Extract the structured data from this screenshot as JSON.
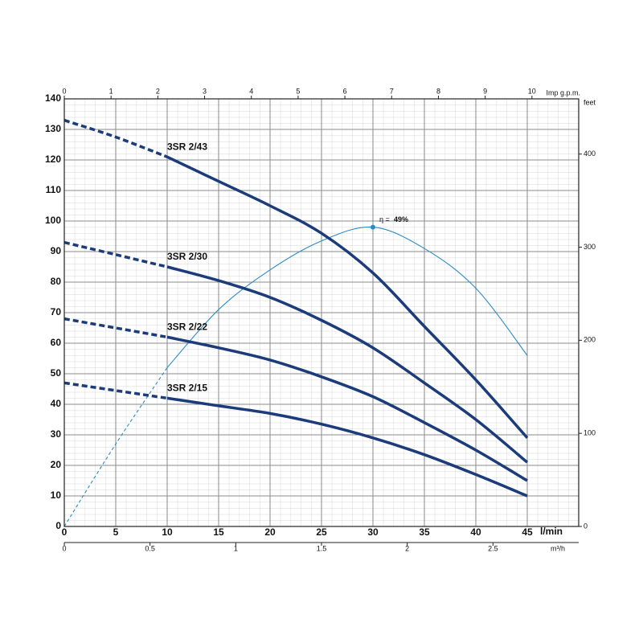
{
  "chart_data": {
    "type": "line",
    "x": [
      0,
      5,
      10,
      15,
      20,
      25,
      30,
      35,
      40,
      45
    ],
    "x_label": "l/min",
    "xlim": [
      0,
      50
    ],
    "xticks": [
      0,
      5,
      10,
      15,
      20,
      25,
      30,
      35,
      40,
      45
    ],
    "ylim": [
      0,
      140
    ],
    "yticks": [
      0,
      10,
      20,
      30,
      40,
      50,
      60,
      70,
      80,
      90,
      100,
      110,
      120,
      130,
      140
    ],
    "grid": true,
    "dashed_until": 10,
    "bottom_axis_2": {
      "label": "m³/h",
      "lim": [
        0,
        3.0
      ],
      "ticks": [
        0,
        0.5,
        1,
        1.5,
        2,
        2.5
      ]
    },
    "top_axis": {
      "label": "Imp g.p.m.",
      "lim": [
        0,
        11.0
      ],
      "ticks": [
        0,
        1,
        2,
        3,
        4,
        5,
        6,
        7,
        8,
        9,
        10
      ]
    },
    "y2_label": "feet",
    "y2lim": [
      0,
      459.3
    ],
    "y2ticks": [
      0,
      100,
      200,
      300,
      400
    ],
    "series": [
      {
        "name": "3SR 2/43",
        "color": "#1b3b7a",
        "values": [
          133,
          127.5,
          121,
          113,
          105,
          96,
          83,
          65.5,
          48,
          29
        ]
      },
      {
        "name": "3SR 2/30",
        "color": "#1b3b7a",
        "values": [
          93,
          89,
          85,
          80.5,
          75,
          67.5,
          58.5,
          47,
          35,
          21
        ]
      },
      {
        "name": "3SR 2/22",
        "color": "#1b3b7a",
        "values": [
          68,
          65,
          62,
          58.5,
          54.5,
          49,
          42.5,
          34,
          25,
          15
        ]
      },
      {
        "name": "3SR 2/15",
        "color": "#1b3b7a",
        "values": [
          47,
          44.5,
          42,
          39.5,
          37,
          33.5,
          29,
          23.5,
          17,
          10
        ]
      }
    ],
    "efficiency": {
      "color": "#2a8bc4",
      "values": [
        0,
        27,
        52,
        71,
        84,
        93.5,
        98,
        91,
        78,
        56
      ],
      "symbol": "η =",
      "peak_label": "49%"
    }
  }
}
